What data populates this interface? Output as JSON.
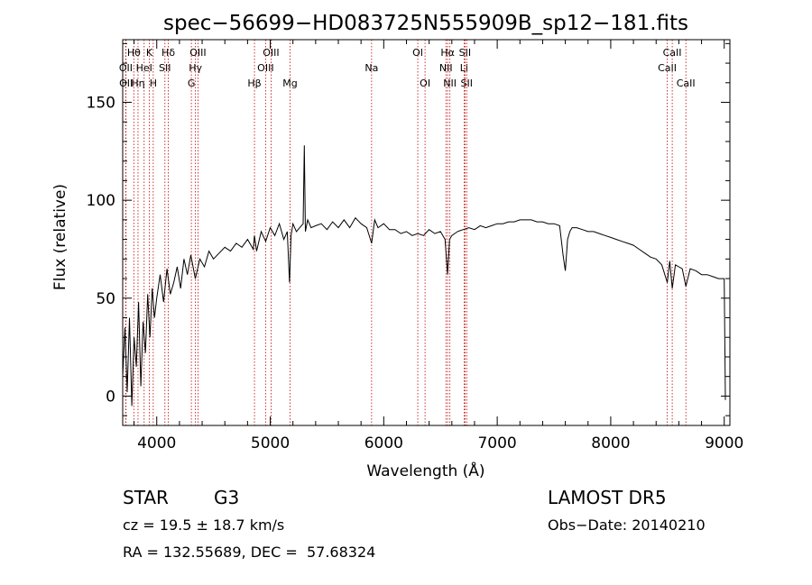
{
  "chart_data": {
    "type": "line",
    "title": "spec−56699−HD083725N555909B_sp12−181.fits",
    "xlabel": "Wavelength (Å)",
    "ylabel": "Flux (relative)",
    "xlim": [
      3700,
      9050
    ],
    "ylim": [
      -15,
      182
    ],
    "xticks": [
      4000,
      5000,
      6000,
      7000,
      8000,
      9000
    ],
    "yticks": [
      0,
      50,
      100,
      150
    ],
    "grid": false,
    "series": [
      {
        "x": [
          3700,
          3720,
          3740,
          3760,
          3780,
          3800,
          3820,
          3840,
          3860,
          3880,
          3900,
          3920,
          3940,
          3960,
          3980,
          4000,
          4030,
          4060,
          4090,
          4120,
          4150,
          4180,
          4210,
          4240,
          4270,
          4300,
          4340,
          4380,
          4420,
          4460,
          4500,
          4550,
          4600,
          4650,
          4700,
          4750,
          4800,
          4850,
          4861,
          4880,
          4920,
          4960,
          5000,
          5040,
          5080,
          5120,
          5150,
          5170,
          5183,
          5200,
          5230,
          5260,
          5290,
          5300,
          5310,
          5330,
          5360,
          5400,
          5450,
          5500,
          5550,
          5600,
          5650,
          5700,
          5750,
          5800,
          5850,
          5893,
          5920,
          5950,
          6000,
          6050,
          6100,
          6150,
          6200,
          6250,
          6300,
          6350,
          6400,
          6450,
          6500,
          6540,
          6563,
          6580,
          6600,
          6650,
          6700,
          6750,
          6800,
          6850,
          6900,
          6950,
          7000,
          7050,
          7100,
          7150,
          7200,
          7250,
          7300,
          7350,
          7400,
          7450,
          7500,
          7550,
          7580,
          7600,
          7620,
          7640,
          7660,
          7700,
          7750,
          7800,
          7850,
          7900,
          7950,
          8000,
          8050,
          8100,
          8150,
          8200,
          8250,
          8300,
          8350,
          8400,
          8450,
          8498,
          8520,
          8542,
          8570,
          8600,
          8630,
          8662,
          8700,
          8750,
          8800,
          8850,
          8900,
          8950,
          9000,
          9010
        ],
        "y": [
          10,
          35,
          2,
          40,
          -5,
          30,
          15,
          48,
          5,
          38,
          22,
          52,
          30,
          55,
          40,
          50,
          62,
          48,
          65,
          52,
          58,
          66,
          55,
          70,
          62,
          72,
          60,
          70,
          66,
          74,
          70,
          73,
          76,
          74,
          78,
          76,
          80,
          75,
          82,
          74,
          84,
          79,
          86,
          82,
          88,
          80,
          84,
          58,
          82,
          88,
          84,
          86,
          88,
          128,
          84,
          90,
          86,
          87,
          88,
          85,
          89,
          86,
          90,
          86,
          91,
          88,
          86,
          78,
          90,
          86,
          88,
          85,
          85,
          83,
          84,
          82,
          83,
          82,
          85,
          83,
          84,
          80,
          62,
          80,
          82,
          84,
          85,
          86,
          85,
          87,
          86,
          87,
          88,
          88,
          89,
          89,
          90,
          90,
          90,
          89,
          89,
          88,
          88,
          87,
          72,
          64,
          80,
          84,
          86,
          86,
          85,
          84,
          84,
          83,
          82,
          81,
          80,
          79,
          78,
          77,
          75,
          73,
          71,
          70,
          67,
          58,
          69,
          55,
          67,
          66,
          65,
          56,
          65,
          64,
          62,
          62,
          61,
          60,
          60,
          -2
        ]
      }
    ],
    "line_markers": [
      {
        "name": "Hθ",
        "wl": 3798,
        "row": 0
      },
      {
        "name": "OII",
        "wl": 3727,
        "row": 1
      },
      {
        "name": "OII",
        "wl": 3729,
        "row": 2
      },
      {
        "name": "Hη",
        "wl": 3835,
        "row": 2
      },
      {
        "name": "HeI",
        "wl": 3889,
        "row": 1
      },
      {
        "name": "K",
        "wl": 3934,
        "row": 0
      },
      {
        "name": "H",
        "wl": 3969,
        "row": 2
      },
      {
        "name": "Hδ",
        "wl": 4102,
        "row": 0
      },
      {
        "name": "SII",
        "wl": 4072,
        "row": 1
      },
      {
        "name": "OIII",
        "wl": 4363,
        "row": 0
      },
      {
        "name": "Hγ",
        "wl": 4341,
        "row": 1
      },
      {
        "name": "G",
        "wl": 4305,
        "row": 2
      },
      {
        "name": "Hβ",
        "wl": 4861,
        "row": 2
      },
      {
        "name": "OIII",
        "wl": 5007,
        "row": 0
      },
      {
        "name": "OIII",
        "wl": 4959,
        "row": 1
      },
      {
        "name": "Mg",
        "wl": 5175,
        "row": 2
      },
      {
        "name": "Na",
        "wl": 5893,
        "row": 1
      },
      {
        "name": "OI",
        "wl": 6300,
        "row": 0
      },
      {
        "name": "OI",
        "wl": 6364,
        "row": 2
      },
      {
        "name": "Hα",
        "wl": 6563,
        "row": 0
      },
      {
        "name": "NII",
        "wl": 6548,
        "row": 1
      },
      {
        "name": "NII",
        "wl": 6583,
        "row": 2
      },
      {
        "name": "SII",
        "wl": 6716,
        "row": 0
      },
      {
        "name": "Li",
        "wl": 6708,
        "row": 1
      },
      {
        "name": "SII",
        "wl": 6731,
        "row": 2
      },
      {
        "name": "CaII",
        "wl": 8542,
        "row": 0
      },
      {
        "name": "CaII",
        "wl": 8498,
        "row": 1
      },
      {
        "name": "CaII",
        "wl": 8662,
        "row": 2
      }
    ]
  },
  "info": {
    "object_class": "STAR",
    "subclass": "G3",
    "survey": "LAMOST DR5",
    "cz": "cz = 19.5 ± 18.7 km/s",
    "obs_date": "Obs−Date: 20140210",
    "radec": "RA = 132.55689, DEC =  57.68324"
  },
  "colors": {
    "spectrum": "#000000",
    "line_marker": "#c00000",
    "axes": "#000000"
  }
}
